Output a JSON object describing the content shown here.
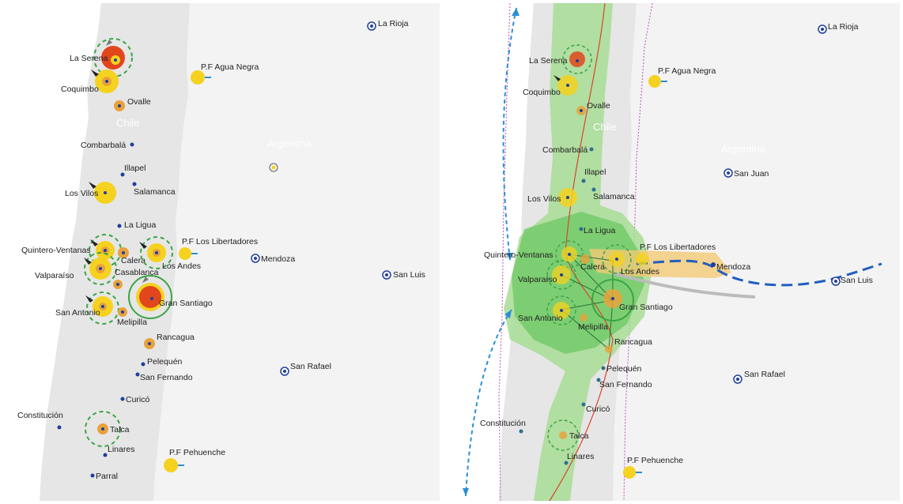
{
  "countries": {
    "chile": "Chile",
    "argentina": "Argentina"
  },
  "left_map": {
    "cities": {
      "la_serena": "La Serena",
      "coquimbo": "Coquimbo",
      "ovalle": "Ovalle",
      "combarbala": "Combarbalá",
      "illapel": "Illapel",
      "salamanca": "Salamanca",
      "los_vilos": "Los Vilos",
      "la_ligua": "La Ligua",
      "quintero": "Quintero-Ventanas",
      "calera": "Calera",
      "los_andes": "Los Andes",
      "valparaiso": "Valparaíso",
      "casablanca": "Casablanca",
      "gran_santiago": "Gran Santiago",
      "san_antonio": "San Antonio",
      "melipilla": "Melipilla",
      "rancagua": "Rancagua",
      "pelequen": "Pelequén",
      "san_fernando": "San Fernando",
      "curico": "Curicó",
      "constitucion": "Constitución",
      "talca": "Talca",
      "linares": "Linares",
      "parral": "Parral",
      "la_rioja": "La Rioja",
      "agua_negra": "P.F Agua Negra",
      "los_libertadores": "P.F Los Libertadores",
      "mendoza": "Mendoza",
      "san_luis": "San Luis",
      "san_rafael": "San Rafael",
      "pehuenche": "P.F Pehuenche"
    }
  },
  "right_map": {
    "cities": {
      "la_serena": "La Serena",
      "coquimbo": "Coquimbo",
      "ovalle": "Ovalle",
      "combarbala": "Combarbalá",
      "illapel": "Illapel",
      "salamanca": "Salamanca",
      "los_vilos": "Los Vilos",
      "la_ligua": "La Ligua",
      "quintero": "Quintero-Ventanas",
      "calera": "Calera",
      "los_andes": "Los Andes",
      "valparaiso": "Valparaíso",
      "gran_santiago": "Gran Santiago",
      "san_antonio": "San Antonio",
      "melipilla": "Melipilla",
      "rancagua": "Rancagua",
      "pelequen": "Pelequén",
      "san_fernando": "San Fernando",
      "curico": "Curicó",
      "constitucion": "Constitución",
      "talca": "Talca",
      "linares": "Linares",
      "la_rioja": "La Rioja",
      "agua_negra": "P.F Agua Negra",
      "san_juan": "San Juan",
      "los_libertadores": "P.F Los Libertadores",
      "mendoza": "Mendoza",
      "san_luis": "San Luis",
      "san_rafael": "San Rafael",
      "pehuenche": "P.F Pehuenche"
    }
  },
  "colors": {
    "land_chile": "#e6e6e6",
    "land_argentina": "#f2f2f2",
    "city_yellow": "#f5d21f",
    "city_orange": "#e9a23b",
    "city_red": "#e2461c",
    "dot_blue": "#1f3f9a",
    "ring_green": "#3aa544",
    "corridor_green": "#8fd27f",
    "arrow_blue": "#2b8fd6",
    "route_red": "#d9452b",
    "border_pink": "#c04fb8",
    "corridor_orange": "#f4c977"
  },
  "icons": [
    "port-anchor-icon",
    "airport-icon",
    "city-dot-icon",
    "border-crossing-icon"
  ]
}
